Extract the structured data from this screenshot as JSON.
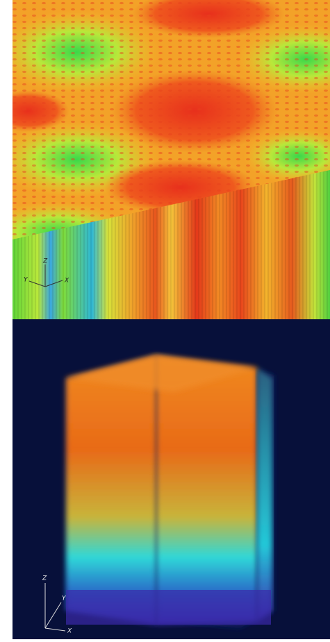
{
  "panels": [
    {
      "axes": {
        "z": "Z",
        "y": "Y",
        "x": "X"
      }
    },
    {
      "axes": {
        "z": "Z",
        "y": "Y",
        "x": "X"
      }
    }
  ]
}
